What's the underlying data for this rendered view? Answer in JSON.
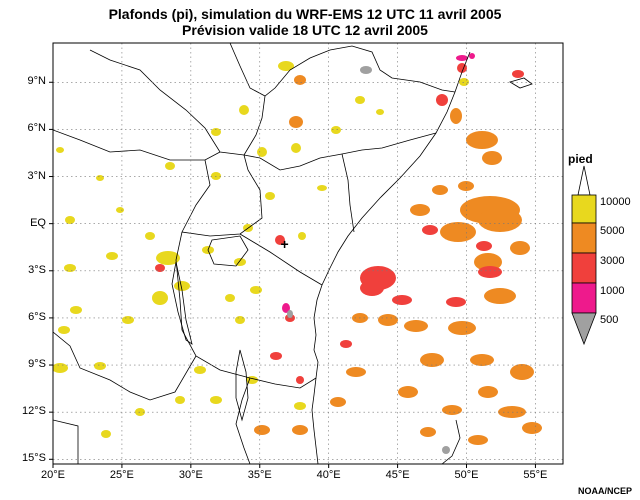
{
  "title": {
    "line1": "Plafonds (pi), simulation du WRF-EMS 12 UTC 11 avril 2005",
    "line2": "Prévision valide 18 UTC 12 avril 2005"
  },
  "map": {
    "lon_range": [
      20,
      57
    ],
    "lat_range": [
      -15.3,
      11.5
    ],
    "lon_ticks": [
      {
        "value": 20,
        "label": "20°E"
      },
      {
        "value": 25,
        "label": "25°E"
      },
      {
        "value": 30,
        "label": "30°E"
      },
      {
        "value": 35,
        "label": "35°E"
      },
      {
        "value": 40,
        "label": "40°E"
      },
      {
        "value": 45,
        "label": "45°E"
      },
      {
        "value": 50,
        "label": "50°E"
      },
      {
        "value": 55,
        "label": "55°E"
      }
    ],
    "lat_ticks": [
      {
        "value": 9,
        "label": "9°N"
      },
      {
        "value": 6,
        "label": "6°N"
      },
      {
        "value": 3,
        "label": "3°N"
      },
      {
        "value": 0,
        "label": "EQ"
      },
      {
        "value": -3,
        "label": "3°S"
      },
      {
        "value": -6,
        "label": "6°S"
      },
      {
        "value": -9,
        "label": "9°S"
      },
      {
        "value": -12,
        "label": "12°S"
      },
      {
        "value": -15,
        "label": "15°S"
      }
    ],
    "grid": true,
    "marker": {
      "symbol": "+",
      "lon": 36.8,
      "lat": -1.3
    }
  },
  "legend": {
    "title": "pied",
    "levels": [
      {
        "label": "10000",
        "color": "#e8d81e"
      },
      {
        "label": "5000",
        "color": "#ee8a22"
      },
      {
        "label": "3000",
        "color": "#f0403c"
      },
      {
        "label": "1000",
        "color": "#ee1a8c"
      },
      {
        "label": "500",
        "color": "#a0a0a0"
      }
    ]
  },
  "credit": "NOAA/NCEP"
}
